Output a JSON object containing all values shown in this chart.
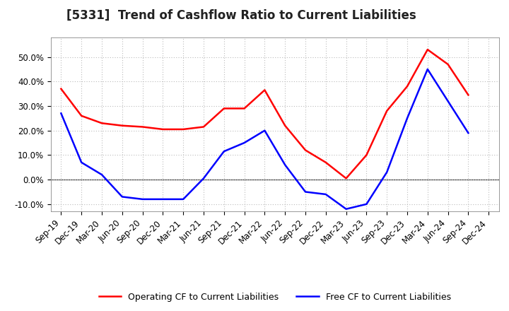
{
  "title": "[5331]  Trend of Cashflow Ratio to Current Liabilities",
  "x_labels": [
    "Sep-19",
    "Dec-19",
    "Mar-20",
    "Jun-20",
    "Sep-20",
    "Dec-20",
    "Mar-21",
    "Jun-21",
    "Sep-21",
    "Dec-21",
    "Mar-22",
    "Jun-22",
    "Sep-22",
    "Dec-22",
    "Mar-23",
    "Jun-23",
    "Sep-23",
    "Dec-23",
    "Mar-24",
    "Jun-24",
    "Sep-24",
    "Dec-24"
  ],
  "operating_cf": [
    37.0,
    26.0,
    23.0,
    22.0,
    21.5,
    20.5,
    20.5,
    21.5,
    29.0,
    29.0,
    36.5,
    22.0,
    12.0,
    7.0,
    0.5,
    10.0,
    28.0,
    38.0,
    53.0,
    47.0,
    34.5,
    null
  ],
  "free_cf": [
    27.0,
    7.0,
    2.0,
    -7.0,
    -8.0,
    -8.0,
    -8.0,
    0.5,
    11.5,
    15.0,
    20.0,
    6.0,
    -5.0,
    -6.0,
    -12.0,
    -10.0,
    3.0,
    25.0,
    45.0,
    32.0,
    19.0,
    null
  ],
  "operating_color": "#ff0000",
  "free_color": "#0000ff",
  "ylim": [
    -13,
    58
  ],
  "yticks": [
    -10,
    0,
    10,
    20,
    30,
    40,
    50
  ],
  "background_color": "#ffffff",
  "grid_color": "#bbbbbb",
  "legend_op": "Operating CF to Current Liabilities",
  "legend_free": "Free CF to Current Liabilities",
  "title_fontsize": 12,
  "tick_fontsize": 8.5,
  "legend_fontsize": 9
}
